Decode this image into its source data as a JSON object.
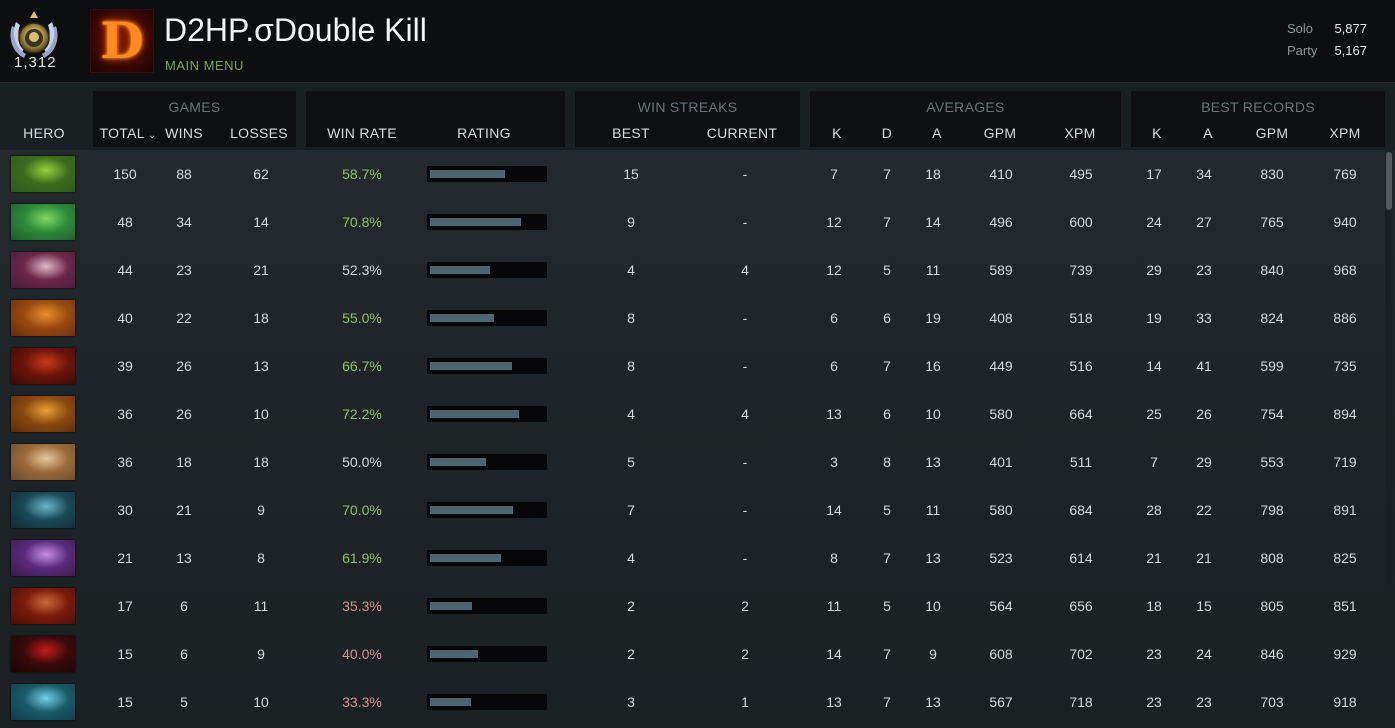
{
  "header": {
    "medal_count": "1,312",
    "avatar_letter": "D",
    "player_name": "D2HP.σDouble Kill",
    "main_menu": "MAIN MENU",
    "solo_label": "Solo",
    "solo_value": "5,877",
    "party_label": "Party",
    "party_value": "5,167"
  },
  "columns": {
    "hero": "HERO",
    "games_group": "GAMES",
    "total": "TOTAL",
    "wins": "WINS",
    "losses": "LOSSES",
    "win_rate": "WIN RATE",
    "rating": "RATING",
    "streaks_group": "WIN STREAKS",
    "best": "BEST",
    "current": "CURRENT",
    "averages_group": "AVERAGES",
    "avg_k": "K",
    "avg_d": "D",
    "avg_a": "A",
    "avg_gpm": "GPM",
    "avg_xpm": "XPM",
    "records_group": "BEST RECORDS",
    "rec_k": "K",
    "rec_a": "A",
    "rec_gpm": "GPM",
    "rec_xpm": "XPM"
  },
  "rows": [
    {
      "total": "150",
      "wins": "88",
      "losses": "62",
      "win_rate": "58.7%",
      "rating": 0.66,
      "best": "15",
      "current": "-",
      "k": "7",
      "d": "7",
      "a": "18",
      "gpm": "410",
      "xpm": "495",
      "rk": "17",
      "ra": "34",
      "rgpm": "830",
      "rxpm": "769",
      "hero_colors": [
        "#2e5a18",
        "#9ad23a",
        "#3b6b1e"
      ]
    },
    {
      "total": "48",
      "wins": "34",
      "losses": "14",
      "win_rate": "70.8%",
      "rating": 0.8,
      "best": "9",
      "current": "-",
      "k": "12",
      "d": "7",
      "a": "14",
      "gpm": "496",
      "xpm": "600",
      "rk": "24",
      "ra": "27",
      "rgpm": "765",
      "rxpm": "940",
      "hero_colors": [
        "#1e5a2a",
        "#7ed860",
        "#2d8a3a"
      ]
    },
    {
      "total": "44",
      "wins": "23",
      "losses": "21",
      "win_rate": "52.3%",
      "rating": 0.53,
      "best": "4",
      "current": "4",
      "k": "12",
      "d": "5",
      "a": "11",
      "gpm": "589",
      "xpm": "739",
      "rk": "29",
      "ra": "23",
      "rgpm": "840",
      "rxpm": "968",
      "hero_colors": [
        "#4a1a3a",
        "#e0b8c8",
        "#6a2848"
      ]
    },
    {
      "total": "40",
      "wins": "22",
      "losses": "18",
      "win_rate": "55.0%",
      "rating": 0.56,
      "best": "8",
      "current": "-",
      "k": "6",
      "d": "6",
      "a": "19",
      "gpm": "408",
      "xpm": "518",
      "rk": "19",
      "ra": "33",
      "rgpm": "824",
      "rxpm": "886",
      "hero_colors": [
        "#6a2a0a",
        "#e8902a",
        "#9a4a10"
      ]
    },
    {
      "total": "39",
      "wins": "26",
      "losses": "13",
      "win_rate": "66.7%",
      "rating": 0.72,
      "best": "8",
      "current": "-",
      "k": "6",
      "d": "7",
      "a": "16",
      "gpm": "449",
      "xpm": "516",
      "rk": "14",
      "ra": "41",
      "rgpm": "599",
      "rxpm": "735",
      "hero_colors": [
        "#3a0a06",
        "#c83a18",
        "#6a140a"
      ]
    },
    {
      "total": "36",
      "wins": "26",
      "losses": "10",
      "win_rate": "72.2%",
      "rating": 0.78,
      "best": "4",
      "current": "4",
      "k": "13",
      "d": "6",
      "a": "10",
      "gpm": "580",
      "xpm": "664",
      "rk": "25",
      "ra": "26",
      "rgpm": "754",
      "rxpm": "894",
      "hero_colors": [
        "#5a2a06",
        "#e8a030",
        "#8a4a0e"
      ]
    },
    {
      "total": "36",
      "wins": "18",
      "losses": "18",
      "win_rate": "50.0%",
      "rating": 0.49,
      "best": "5",
      "current": "-",
      "k": "3",
      "d": "8",
      "a": "13",
      "gpm": "401",
      "xpm": "511",
      "rk": "7",
      "ra": "29",
      "rgpm": "553",
      "rxpm": "719",
      "hero_colors": [
        "#6a4a2a",
        "#e8c8a0",
        "#9a6a3a"
      ]
    },
    {
      "total": "30",
      "wins": "21",
      "losses": "9",
      "win_rate": "70.0%",
      "rating": 0.73,
      "best": "7",
      "current": "-",
      "k": "14",
      "d": "5",
      "a": "11",
      "gpm": "580",
      "xpm": "684",
      "rk": "28",
      "ra": "22",
      "rgpm": "798",
      "rxpm": "891",
      "hero_colors": [
        "#0e2a34",
        "#6ab8c8",
        "#1a4a58"
      ]
    },
    {
      "total": "21",
      "wins": "13",
      "losses": "8",
      "win_rate": "61.9%",
      "rating": 0.62,
      "best": "4",
      "current": "-",
      "k": "8",
      "d": "7",
      "a": "13",
      "gpm": "523",
      "xpm": "614",
      "rk": "21",
      "ra": "21",
      "rgpm": "808",
      "rxpm": "825",
      "hero_colors": [
        "#3a1a4a",
        "#c890e0",
        "#5a2a7a"
      ]
    },
    {
      "total": "17",
      "wins": "6",
      "losses": "11",
      "win_rate": "35.3%",
      "rating": 0.37,
      "best": "2",
      "current": "2",
      "k": "11",
      "d": "5",
      "a": "10",
      "gpm": "564",
      "xpm": "656",
      "rk": "18",
      "ra": "15",
      "rgpm": "805",
      "rxpm": "851",
      "hero_colors": [
        "#4a0e06",
        "#c86a3a",
        "#7a1a0a"
      ]
    },
    {
      "total": "15",
      "wins": "6",
      "losses": "9",
      "win_rate": "40.0%",
      "rating": 0.42,
      "best": "2",
      "current": "2",
      "k": "14",
      "d": "7",
      "a": "9",
      "gpm": "608",
      "xpm": "702",
      "rk": "23",
      "ra": "24",
      "rgpm": "846",
      "rxpm": "929",
      "hero_colors": [
        "#1a0606",
        "#c81a1a",
        "#3a0a0a"
      ]
    },
    {
      "total": "15",
      "wins": "5",
      "losses": "10",
      "win_rate": "33.3%",
      "rating": 0.36,
      "best": "3",
      "current": "1",
      "k": "13",
      "d": "7",
      "a": "13",
      "gpm": "567",
      "xpm": "718",
      "rk": "23",
      "ra": "23",
      "rgpm": "703",
      "rxpm": "918",
      "hero_colors": [
        "#0e3a4a",
        "#70d0e8",
        "#1a5a6a"
      ]
    }
  ]
}
